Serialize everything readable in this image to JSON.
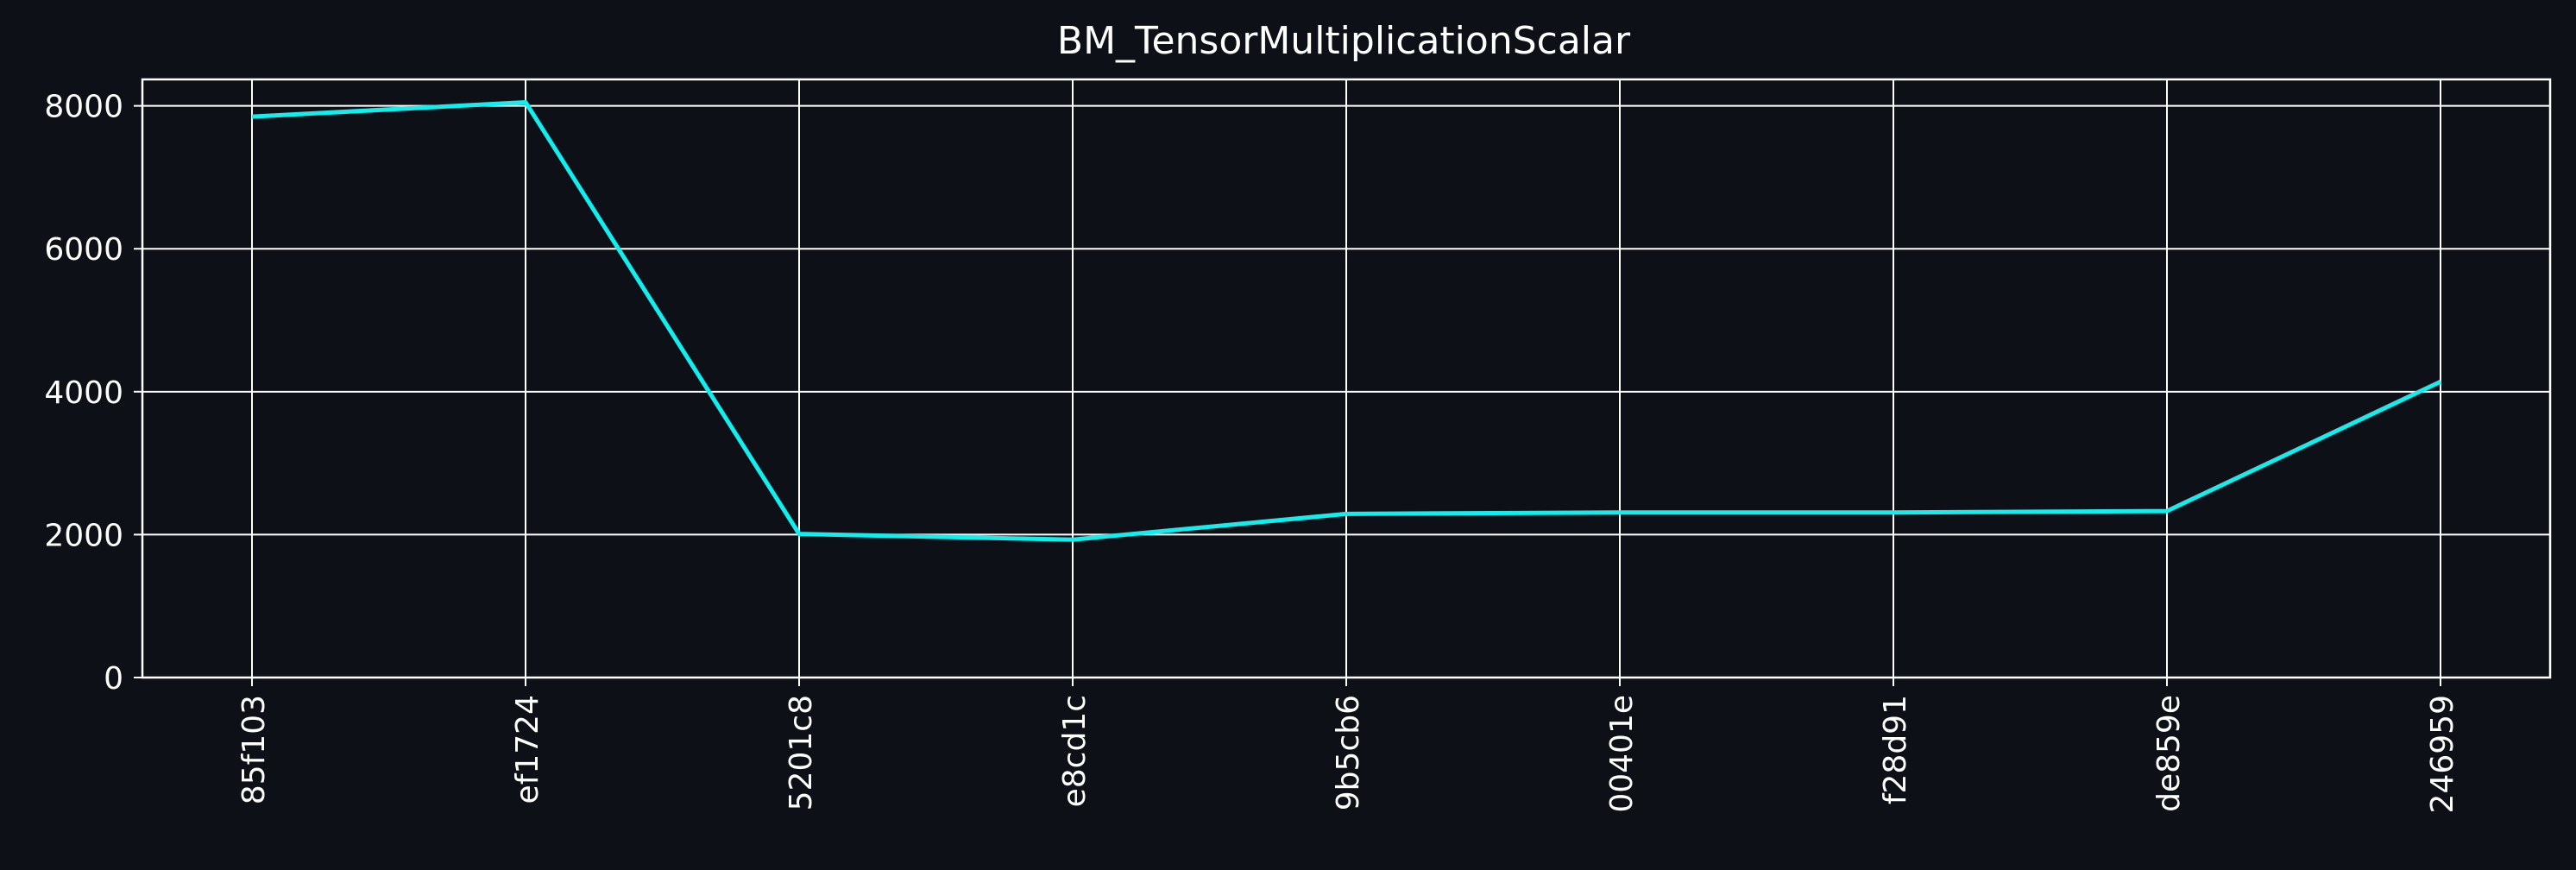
{
  "colors": {
    "background": "#0d1017",
    "axes_face": "#0d1017",
    "grid": "#ffffff",
    "text": "#ffffff",
    "line": "#12eeee"
  },
  "chart_data": {
    "type": "line",
    "title": "BM_TensorMultiplicationScalar",
    "xlabel": "",
    "ylabel": "",
    "categories": [
      "85f103",
      "ef1724",
      "5201c8",
      "e8cd1c",
      "9b5cb6",
      "00401e",
      "f28d91",
      "de859e",
      "246959"
    ],
    "series": [
      {
        "values": [
          7850,
          8050,
          2010,
          1930,
          2290,
          2310,
          2310,
          2330,
          4140
        ]
      }
    ],
    "ylim": [
      0,
      8370
    ],
    "yticks": [
      0,
      2000,
      4000,
      6000,
      8000
    ],
    "ytick_labels": [
      "0",
      "2000",
      "4000",
      "6000",
      "8000"
    ],
    "grid": true,
    "legend": "none"
  }
}
